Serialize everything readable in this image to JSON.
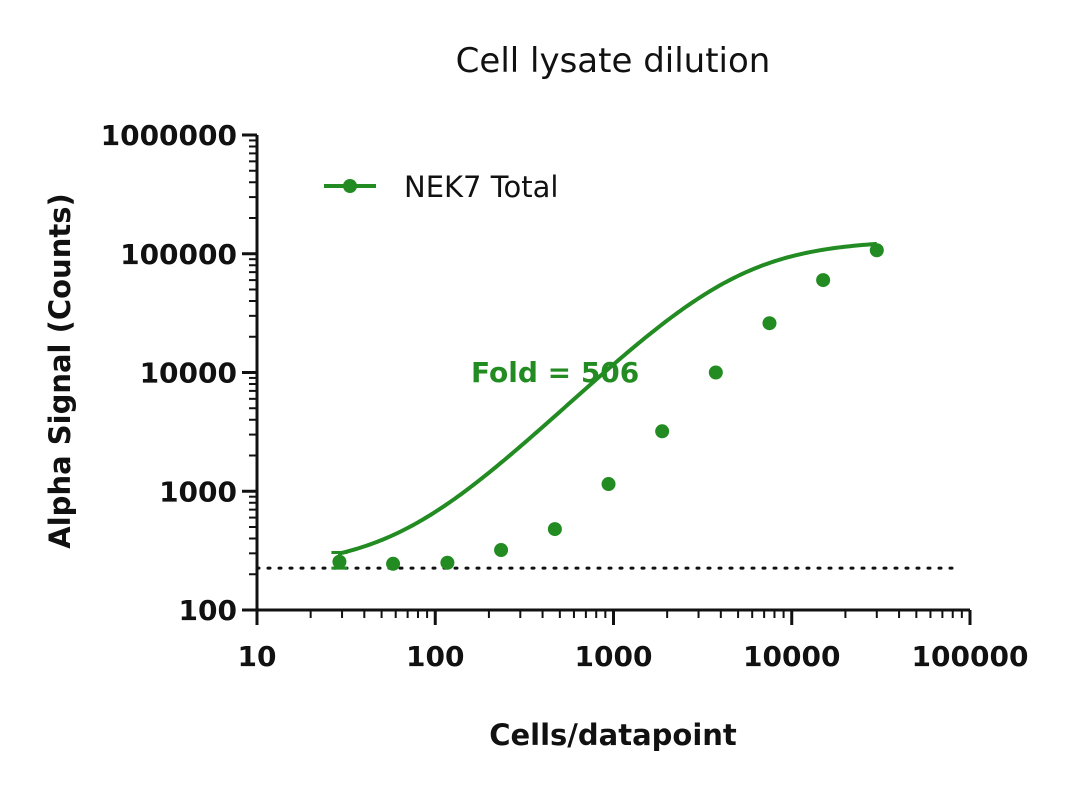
{
  "chart_data": {
    "type": "line",
    "title": "Cell lysate dilution",
    "xlabel": "Cells/datapoint",
    "ylabel": "Alpha Signal (Counts)",
    "x_scale": "log",
    "y_scale": "log",
    "xlim": [
      10,
      100000
    ],
    "ylim": [
      100,
      1000000
    ],
    "x_tick_labels": [
      "10",
      "100",
      "1000",
      "10000",
      "100000"
    ],
    "y_tick_labels": [
      "100",
      "1000",
      "10000",
      "100000",
      "1000000"
    ],
    "legend_position": "top-left",
    "series": [
      {
        "name": "NEK7 Total",
        "color": "#228B22",
        "x": [
          29,
          58,
          117,
          234,
          469,
          938,
          1875,
          3750,
          7500,
          15000,
          30000
        ],
        "y": [
          255,
          245,
          250,
          320,
          480,
          1150,
          3200,
          10000,
          26000,
          60000,
          107000
        ],
        "error_upper": [
          305,
          250,
          255,
          325,
          490,
          1170,
          3250,
          10200,
          26500,
          61000,
          109000
        ],
        "error_lower": [
          225,
          240,
          245,
          315,
          470,
          1130,
          3150,
          9800,
          25500,
          59000,
          105000
        ]
      }
    ],
    "fit_curve": {
      "bottom": 225,
      "top": 130000,
      "ec50": 5000,
      "hill": 1.45,
      "x_range": [
        29,
        30000
      ]
    },
    "background_line": {
      "y": 225,
      "style": "dotted"
    },
    "annotations": [
      {
        "text": "Fold = 506",
        "x": 550,
        "y": 10000
      }
    ]
  }
}
